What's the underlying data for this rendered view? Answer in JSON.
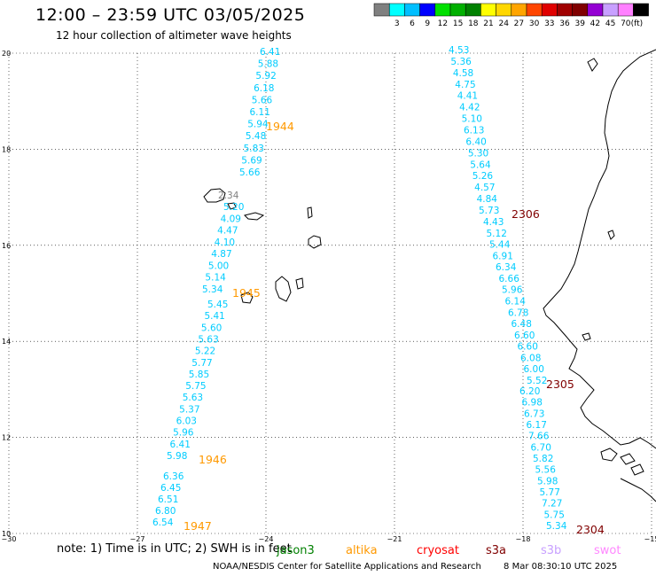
{
  "header": {
    "title": "12:00 – 23:59 UTC 03/05/2025",
    "subtitle": "12 hour collection of altimeter wave heights"
  },
  "legend": {
    "unit": "(ft)",
    "swatches": [
      {
        "color": "#808080",
        "label": ""
      },
      {
        "color": "#00ffff",
        "label": "3"
      },
      {
        "color": "#00bfff",
        "label": "6"
      },
      {
        "color": "#0000ff",
        "label": "9"
      },
      {
        "color": "#00e000",
        "label": "12"
      },
      {
        "color": "#00b000",
        "label": "15"
      },
      {
        "color": "#008000",
        "label": "18"
      },
      {
        "color": "#ffff00",
        "label": "21"
      },
      {
        "color": "#ffd700",
        "label": "24"
      },
      {
        "color": "#ffa500",
        "label": "27"
      },
      {
        "color": "#ff4500",
        "label": "30"
      },
      {
        "color": "#e00000",
        "label": "33"
      },
      {
        "color": "#a00000",
        "label": "36"
      },
      {
        "color": "#800000",
        "label": "39"
      },
      {
        "color": "#9400d3",
        "label": "42"
      },
      {
        "color": "#c8a0ff",
        "label": "45"
      },
      {
        "color": "#ff80ff",
        "label": "70"
      },
      {
        "color": "#000000",
        "label": ""
      }
    ]
  },
  "axes": {
    "lat_ticks": [
      "20",
      "18",
      "16",
      "14",
      "12",
      "10"
    ],
    "lon_ticks": [
      "−30",
      "−27",
      "−24",
      "−21",
      "−18",
      "−15"
    ],
    "lat_range": [
      10,
      20
    ],
    "lon_range": [
      -30,
      -15
    ],
    "grid": "dotted"
  },
  "tracks": [
    {
      "color": "#00ccff",
      "values": [
        "6.41",
        "5.88",
        "5.92",
        "6.18",
        "5.66",
        "6.11",
        "5.94",
        "5.48",
        "5.83",
        "5.69",
        "5.66"
      ],
      "label": {
        "text": "1944",
        "color": "#ff9900"
      }
    },
    {
      "color": "#00ccff",
      "lead_value": {
        "text": "2.34",
        "color": "#808080"
      },
      "values": [
        "5.20",
        "4.09",
        "4.47",
        "4.10",
        "4.87",
        "5.00",
        "5.14",
        "5.34"
      ],
      "label": {
        "text": "1945",
        "color": "#ff9900"
      }
    },
    {
      "color": "#00ccff",
      "values": [
        "5.45",
        "5.41",
        "5.60",
        "5.63",
        "5.22",
        "5.77",
        "5.85",
        "5.75",
        "5.63",
        "5.37",
        "6.03",
        "5.96",
        "6.41",
        "5.98"
      ],
      "label": {
        "text": "1946",
        "color": "#ff9900"
      }
    },
    {
      "color": "#00ccff",
      "values": [
        "6.36",
        "6.45",
        "6.51",
        "6.80",
        "6.54"
      ],
      "label": {
        "text": "1947",
        "color": "#ff9900"
      }
    },
    {
      "color": "#00ccff",
      "values": [
        "4.53",
        "5.36",
        "4.58",
        "4.75",
        "4.41",
        "4.42",
        "5.10",
        "6.13",
        "6.40",
        "5.30",
        "5.64",
        "5.26",
        "4.57",
        "4.84",
        "5.73"
      ],
      "label": {
        "text": "2306",
        "color": "#800000"
      }
    },
    {
      "color": "#00ccff",
      "values": [
        "4.43",
        "5.12",
        "5.44",
        "6.91",
        "6.34",
        "6.66",
        "5.96",
        "6.14",
        "6.78",
        "6.48",
        "6.60",
        "6.60",
        "6.08",
        "6.00",
        "5.52"
      ],
      "label": {
        "text": "2305",
        "color": "#800000"
      }
    },
    {
      "color": "#00ccff",
      "values": [
        "6.20",
        "6.98",
        "6.73",
        "6.17",
        "7.66",
        "6.70",
        "5.82",
        "5.56",
        "5.98",
        "5.77",
        "7.27",
        "5.75",
        "5.34"
      ],
      "label": {
        "text": "2304",
        "color": "#800000"
      }
    }
  ],
  "note": {
    "text": "note:  1) Time is in UTC;  2) SWH is in feet",
    "satellites": [
      {
        "name": "jason3",
        "color": "#008000"
      },
      {
        "name": "altika",
        "color": "#ff9900"
      },
      {
        "name": "cryosat",
        "color": "#ff0000"
      },
      {
        "name": "s3a",
        "color": "#800000"
      },
      {
        "name": "s3b",
        "color": "#c8a0ff"
      },
      {
        "name": "swot",
        "color": "#ff88ff"
      }
    ]
  },
  "footer": {
    "credit": "NOAA/NESDIS Center for Satellite Applications and Research",
    "timestamp": "8 Mar 08:30:10 UTC 2025"
  }
}
